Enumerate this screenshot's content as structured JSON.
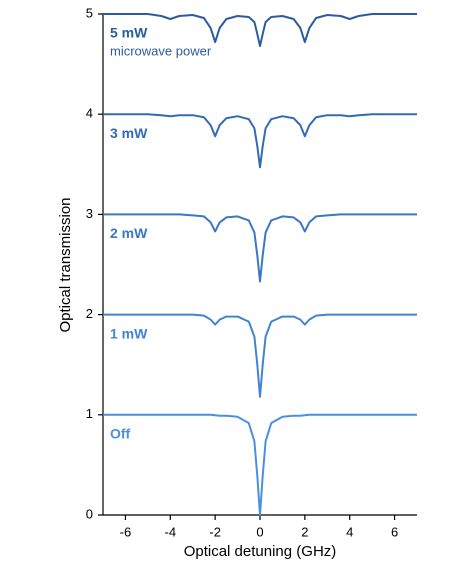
{
  "chart_data": {
    "type": "line",
    "x_label": "Optical detuning (GHz)",
    "y_label": "Optical transmission",
    "annotation": "microwave power",
    "xlim": [
      -7,
      7
    ],
    "xticks": [
      -6,
      -4,
      -2,
      0,
      2,
      4,
      6
    ],
    "ylim": [
      0,
      5
    ],
    "yticks": [
      0,
      1,
      2,
      3,
      4,
      5
    ],
    "x": [
      -7,
      -5,
      -4.4,
      -4,
      -3.6,
      -3,
      -2.5,
      -2.2,
      -2,
      -1.8,
      -1.5,
      -1,
      -0.5,
      -0.25,
      -0.12,
      0,
      0.12,
      0.25,
      0.5,
      1,
      1.5,
      1.8,
      2,
      2.2,
      2.5,
      3,
      3.6,
      4,
      4.4,
      5,
      7
    ],
    "series": [
      {
        "name": "Off",
        "color": "#4a8fe0",
        "values": [
          1,
          1,
          1,
          1,
          1,
          1,
          1,
          1,
          0.995,
          0.99,
          0.99,
          0.98,
          0.917,
          0.735,
          0.39,
          0,
          0.39,
          0.735,
          0.917,
          0.98,
          0.99,
          0.99,
          0.995,
          1,
          1,
          1,
          1,
          1,
          1,
          1,
          1
        ]
      },
      {
        "name": "1 mW",
        "color": "#4283d4",
        "values": [
          2,
          2,
          2,
          2,
          2,
          2,
          1.99,
          1.95,
          1.9,
          1.95,
          1.98,
          1.98,
          1.93,
          1.78,
          1.5,
          1.18,
          1.5,
          1.78,
          1.93,
          1.98,
          1.98,
          1.95,
          1.9,
          1.95,
          1.99,
          2,
          2,
          2,
          2,
          2,
          2
        ]
      },
      {
        "name": "2 mW",
        "color": "#3a77c4",
        "values": [
          3,
          3,
          3,
          3,
          3,
          2.99,
          2.98,
          2.92,
          2.83,
          2.92,
          2.97,
          2.98,
          2.94,
          2.82,
          2.59,
          2.33,
          2.59,
          2.82,
          2.94,
          2.98,
          2.97,
          2.92,
          2.83,
          2.92,
          2.98,
          2.99,
          3,
          3,
          3,
          3,
          3
        ]
      },
      {
        "name": "3 mW",
        "color": "#336ab4",
        "values": [
          4,
          4,
          3.99,
          3.98,
          3.99,
          3.99,
          3.97,
          3.89,
          3.78,
          3.89,
          3.96,
          3.98,
          3.95,
          3.86,
          3.68,
          3.47,
          3.68,
          3.86,
          3.95,
          3.98,
          3.96,
          3.89,
          3.78,
          3.89,
          3.97,
          3.99,
          3.99,
          3.98,
          3.99,
          4,
          4
        ]
      },
      {
        "name": "5 mW",
        "color": "#2b5c9f",
        "values": [
          5,
          5,
          4.98,
          4.95,
          4.98,
          4.99,
          4.96,
          4.86,
          4.72,
          4.86,
          4.95,
          4.98,
          4.97,
          4.92,
          4.8,
          4.68,
          4.8,
          4.92,
          4.97,
          4.98,
          4.95,
          4.86,
          4.72,
          4.86,
          4.96,
          4.99,
          4.98,
          4.95,
          4.98,
          5,
          5
        ]
      }
    ]
  }
}
